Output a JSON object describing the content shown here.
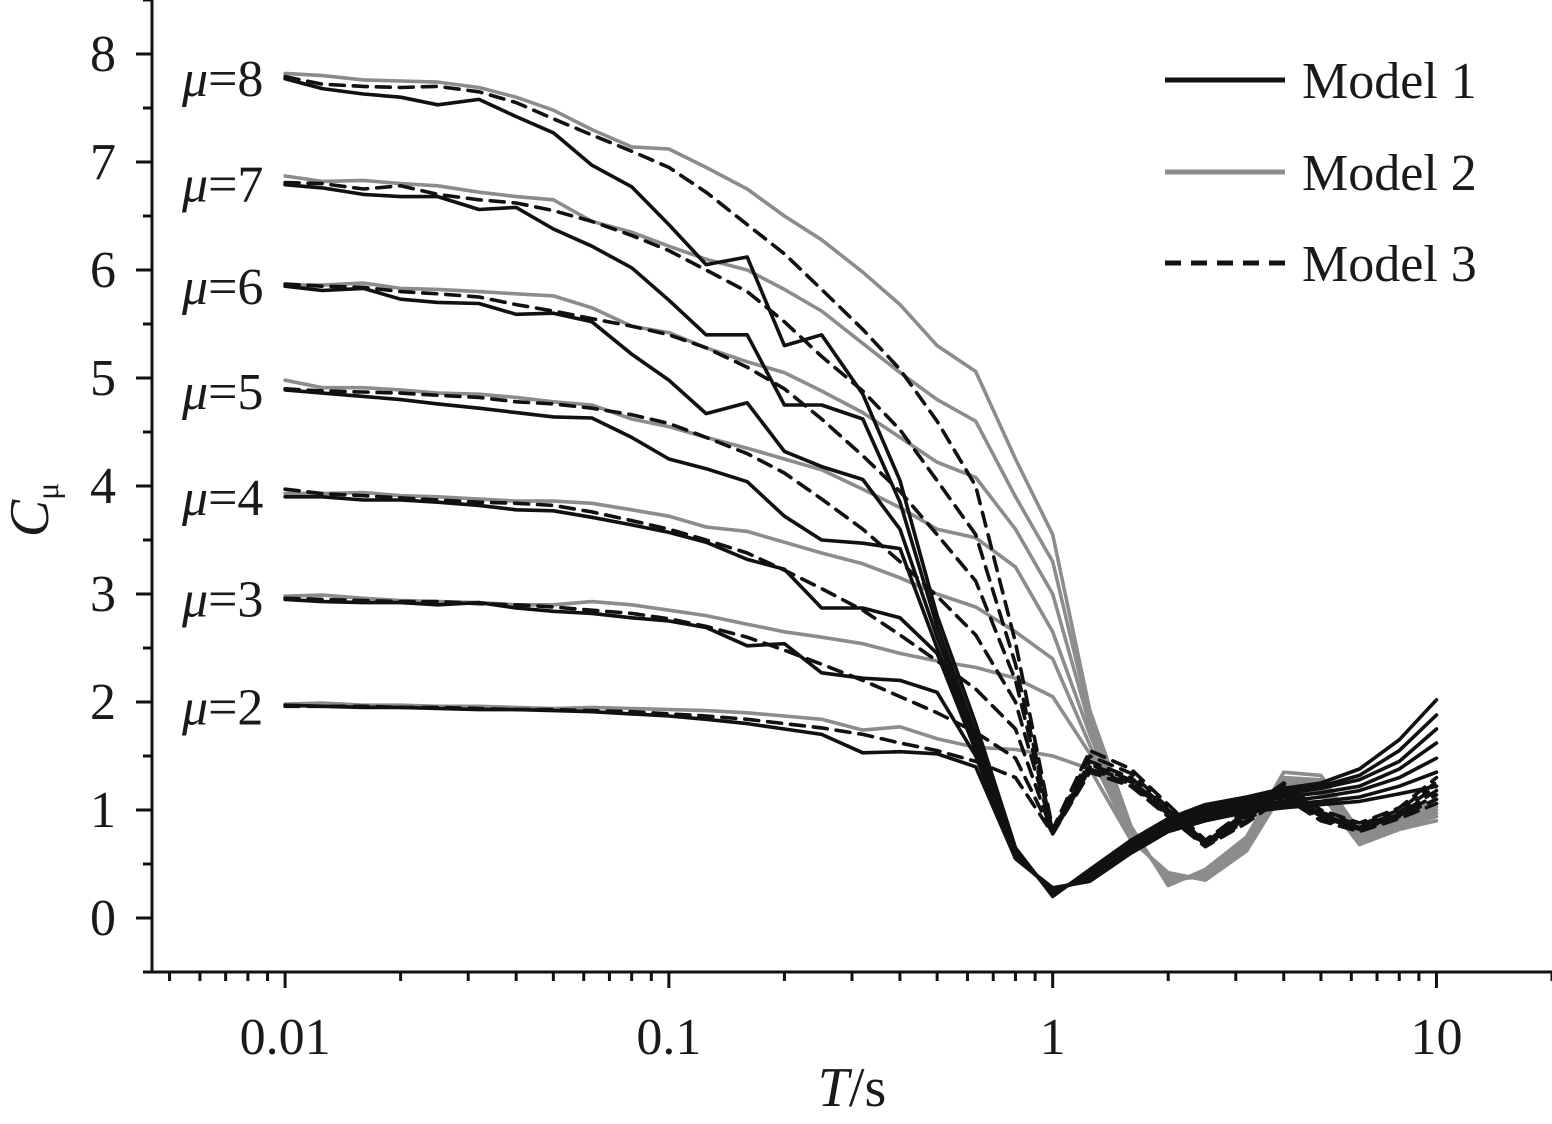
{
  "chart_data": {
    "type": "line",
    "xscale": "log",
    "xlim": [
      0.0045,
      20
    ],
    "ylim": [
      -0.5,
      8.5
    ],
    "xlabel": "T/s",
    "xlabel_italic": "T",
    "xlabel_unit": "/s",
    "ylabel": "Cμ",
    "ylabel_main": "C",
    "ylabel_sub": "μ",
    "x_ticks": [
      {
        "value": 0.01,
        "label": "0.01"
      },
      {
        "value": 0.1,
        "label": "0.1"
      },
      {
        "value": 1,
        "label": "1"
      },
      {
        "value": 10,
        "label": "10"
      }
    ],
    "y_ticks": [
      {
        "value": 0,
        "label": "0"
      },
      {
        "value": 1,
        "label": "1"
      },
      {
        "value": 2,
        "label": "2"
      },
      {
        "value": 3,
        "label": "3"
      },
      {
        "value": 4,
        "label": "4"
      },
      {
        "value": 5,
        "label": "5"
      },
      {
        "value": 6,
        "label": "6"
      },
      {
        "value": 7,
        "label": "7"
      },
      {
        "value": 8,
        "label": "8"
      }
    ],
    "legend": {
      "placement": "top-right",
      "entries": [
        {
          "label": "Model 1",
          "color": "#111111",
          "dash": "solid"
        },
        {
          "label": "Model 2",
          "color": "#8c8c8c",
          "dash": "solid"
        },
        {
          "label": "Model 3",
          "color": "#111111",
          "dash": "dashed"
        }
      ]
    },
    "curve_labels": [
      {
        "mu_symbol": "μ",
        "text": "=8",
        "y": 7.78
      },
      {
        "mu_symbol": "μ",
        "text": "=7",
        "y": 6.8
      },
      {
        "mu_symbol": "μ",
        "text": "=6",
        "y": 5.85
      },
      {
        "mu_symbol": "μ",
        "text": "=5",
        "y": 4.88
      },
      {
        "mu_symbol": "μ",
        "text": "=4",
        "y": 3.9
      },
      {
        "mu_symbol": "μ",
        "text": "=3",
        "y": 2.96
      },
      {
        "mu_symbol": "μ",
        "text": "=2",
        "y": 1.96
      }
    ],
    "x": [
      0.01,
      0.0125,
      0.016,
      0.02,
      0.025,
      0.032,
      0.04,
      0.05,
      0.063,
      0.08,
      0.1,
      0.125,
      0.16,
      0.2,
      0.25,
      0.32,
      0.4,
      0.5,
      0.63,
      0.8,
      1.0,
      1.25,
      1.6,
      2.0,
      2.5,
      3.2,
      4.0,
      5.0,
      6.3,
      8.0,
      10.0
    ],
    "series": [
      {
        "name": "Model 1",
        "mu": 8,
        "values": [
          7.77,
          7.68,
          7.63,
          7.6,
          7.53,
          7.58,
          7.42,
          7.27,
          6.97,
          6.77,
          6.42,
          6.05,
          6.12,
          5.3,
          5.4,
          4.85,
          4.05,
          2.8,
          1.8,
          0.65,
          0.2,
          0.45,
          0.72,
          0.92,
          1.05,
          1.12,
          1.2,
          1.25,
          1.38,
          1.65,
          2.02
        ]
      },
      {
        "name": "Model 1",
        "mu": 7,
        "values": [
          6.79,
          6.76,
          6.7,
          6.68,
          6.68,
          6.56,
          6.58,
          6.38,
          6.22,
          6.02,
          5.72,
          5.4,
          5.4,
          4.75,
          4.75,
          4.62,
          3.85,
          2.7,
          1.7,
          0.62,
          0.22,
          0.42,
          0.7,
          0.9,
          1.02,
          1.1,
          1.18,
          1.22,
          1.32,
          1.55,
          1.88
        ]
      },
      {
        "name": "Model 1",
        "mu": 6,
        "values": [
          5.85,
          5.81,
          5.83,
          5.73,
          5.7,
          5.69,
          5.59,
          5.6,
          5.52,
          5.22,
          4.98,
          4.67,
          4.77,
          4.32,
          4.18,
          4.06,
          3.6,
          2.6,
          1.65,
          0.6,
          0.24,
          0.4,
          0.68,
          0.88,
          1.0,
          1.08,
          1.15,
          1.2,
          1.28,
          1.45,
          1.75
        ]
      },
      {
        "name": "Model 1",
        "mu": 5,
        "values": [
          4.89,
          4.86,
          4.83,
          4.8,
          4.76,
          4.72,
          4.68,
          4.64,
          4.63,
          4.45,
          4.25,
          4.16,
          4.04,
          3.72,
          3.5,
          3.47,
          3.42,
          2.5,
          1.6,
          0.58,
          0.25,
          0.38,
          0.66,
          0.86,
          0.98,
          1.06,
          1.12,
          1.16,
          1.22,
          1.38,
          1.62
        ]
      },
      {
        "name": "Model 1",
        "mu": 4,
        "values": [
          3.9,
          3.9,
          3.87,
          3.87,
          3.85,
          3.82,
          3.78,
          3.77,
          3.71,
          3.64,
          3.57,
          3.48,
          3.32,
          3.23,
          2.87,
          2.87,
          2.78,
          2.45,
          1.55,
          0.56,
          0.26,
          0.36,
          0.64,
          0.84,
          0.95,
          1.03,
          1.08,
          1.12,
          1.18,
          1.3,
          1.48
        ]
      },
      {
        "name": "Model 1",
        "mu": 3,
        "values": [
          2.95,
          2.93,
          2.92,
          2.92,
          2.9,
          2.92,
          2.87,
          2.84,
          2.82,
          2.78,
          2.75,
          2.69,
          2.52,
          2.54,
          2.27,
          2.22,
          2.2,
          2.09,
          1.5,
          0.55,
          0.27,
          0.35,
          0.62,
          0.82,
          0.92,
          1.0,
          1.05,
          1.08,
          1.12,
          1.22,
          1.35
        ]
      },
      {
        "name": "Model 1",
        "mu": 2,
        "values": [
          1.97,
          1.96,
          1.95,
          1.95,
          1.94,
          1.93,
          1.93,
          1.92,
          1.91,
          1.89,
          1.87,
          1.84,
          1.8,
          1.75,
          1.7,
          1.53,
          1.54,
          1.52,
          1.4,
          0.55,
          0.28,
          0.34,
          0.6,
          0.8,
          0.9,
          0.98,
          1.02,
          1.05,
          1.08,
          1.15,
          1.22
        ]
      },
      {
        "name": "Model 2",
        "mu": 8,
        "values": [
          7.82,
          7.8,
          7.76,
          7.75,
          7.74,
          7.69,
          7.6,
          7.48,
          7.3,
          7.14,
          7.12,
          6.95,
          6.75,
          6.5,
          6.28,
          5.98,
          5.68,
          5.3,
          5.06,
          4.25,
          3.55,
          1.92,
          0.85,
          0.3,
          0.45,
          0.75,
          1.35,
          1.32,
          0.8,
          0.95,
          1.1
        ]
      },
      {
        "name": "Model 2",
        "mu": 7,
        "values": [
          6.87,
          6.82,
          6.83,
          6.8,
          6.78,
          6.72,
          6.68,
          6.65,
          6.45,
          6.35,
          6.22,
          6.1,
          6.0,
          5.82,
          5.62,
          5.32,
          5.05,
          4.8,
          4.6,
          3.9,
          3.3,
          1.85,
          0.82,
          0.32,
          0.42,
          0.72,
          1.3,
          1.28,
          0.78,
          0.92,
          1.06
        ]
      },
      {
        "name": "Model 2",
        "mu": 6,
        "values": [
          5.86,
          5.86,
          5.88,
          5.83,
          5.82,
          5.8,
          5.78,
          5.76,
          5.65,
          5.48,
          5.42,
          5.28,
          5.15,
          5.05,
          4.88,
          4.68,
          4.45,
          4.22,
          4.08,
          3.6,
          3.0,
          1.78,
          0.8,
          0.34,
          0.4,
          0.7,
          1.28,
          1.25,
          0.76,
          0.9,
          1.03
        ]
      },
      {
        "name": "Model 2",
        "mu": 5,
        "values": [
          4.98,
          4.91,
          4.91,
          4.89,
          4.86,
          4.85,
          4.82,
          4.78,
          4.75,
          4.62,
          4.55,
          4.45,
          4.35,
          4.25,
          4.15,
          3.97,
          3.8,
          3.6,
          3.52,
          3.25,
          2.65,
          1.7,
          0.78,
          0.36,
          0.38,
          0.68,
          1.25,
          1.22,
          0.74,
          0.88,
          1.0
        ]
      },
      {
        "name": "Model 2",
        "mu": 4,
        "values": [
          3.93,
          3.93,
          3.94,
          3.91,
          3.9,
          3.88,
          3.86,
          3.86,
          3.84,
          3.78,
          3.72,
          3.62,
          3.58,
          3.48,
          3.38,
          3.28,
          3.15,
          3.0,
          2.88,
          2.65,
          2.4,
          1.6,
          0.76,
          0.38,
          0.37,
          0.66,
          1.22,
          1.2,
          0.72,
          0.86,
          0.97
        ]
      },
      {
        "name": "Model 2",
        "mu": 3,
        "values": [
          2.98,
          2.99,
          2.96,
          2.94,
          2.93,
          2.92,
          2.9,
          2.9,
          2.93,
          2.9,
          2.85,
          2.8,
          2.72,
          2.65,
          2.6,
          2.54,
          2.45,
          2.38,
          2.32,
          2.22,
          2.05,
          1.52,
          0.74,
          0.4,
          0.36,
          0.64,
          1.2,
          1.18,
          0.7,
          0.84,
          0.94
        ]
      },
      {
        "name": "Model 2",
        "mu": 2,
        "values": [
          1.98,
          1.99,
          1.97,
          1.97,
          1.96,
          1.96,
          1.95,
          1.94,
          1.95,
          1.94,
          1.93,
          1.92,
          1.9,
          1.87,
          1.84,
          1.74,
          1.77,
          1.66,
          1.58,
          1.56,
          1.5,
          1.38,
          0.72,
          0.42,
          0.35,
          0.62,
          1.18,
          1.15,
          0.68,
          0.82,
          0.9
        ]
      },
      {
        "name": "Model 3",
        "mu": 8,
        "values": [
          7.79,
          7.72,
          7.7,
          7.69,
          7.7,
          7.65,
          7.55,
          7.4,
          7.25,
          7.1,
          6.95,
          6.72,
          6.42,
          6.15,
          5.82,
          5.45,
          5.08,
          4.6,
          4.0,
          2.55,
          0.82,
          1.55,
          1.38,
          1.05,
          0.72,
          1.0,
          1.25,
          1.0,
          0.88,
          1.02,
          1.3
        ]
      },
      {
        "name": "Model 3",
        "mu": 7,
        "values": [
          6.81,
          6.8,
          6.75,
          6.78,
          6.7,
          6.65,
          6.62,
          6.55,
          6.45,
          6.32,
          6.18,
          6.0,
          5.8,
          5.52,
          5.2,
          4.88,
          4.52,
          4.05,
          3.55,
          2.35,
          0.8,
          1.5,
          1.34,
          1.02,
          0.7,
          0.98,
          1.22,
          0.98,
          0.86,
          1.0,
          1.26
        ]
      },
      {
        "name": "Model 3",
        "mu": 6,
        "values": [
          5.87,
          5.85,
          5.84,
          5.8,
          5.78,
          5.75,
          5.68,
          5.62,
          5.55,
          5.48,
          5.4,
          5.28,
          5.1,
          4.9,
          4.62,
          4.28,
          3.95,
          3.55,
          3.12,
          2.2,
          0.8,
          1.45,
          1.3,
          1.0,
          0.7,
          0.96,
          1.2,
          0.96,
          0.84,
          0.98,
          1.22
        ]
      },
      {
        "name": "Model 3",
        "mu": 5,
        "values": [
          4.9,
          4.88,
          4.87,
          4.86,
          4.84,
          4.82,
          4.78,
          4.76,
          4.72,
          4.66,
          4.58,
          4.45,
          4.3,
          4.12,
          3.88,
          3.6,
          3.3,
          2.98,
          2.62,
          2.0,
          0.8,
          1.42,
          1.28,
          0.98,
          0.68,
          0.94,
          1.18,
          0.95,
          0.84,
          0.96,
          1.18
        ]
      },
      {
        "name": "Model 3",
        "mu": 4,
        "values": [
          3.97,
          3.93,
          3.91,
          3.89,
          3.87,
          3.85,
          3.84,
          3.82,
          3.76,
          3.68,
          3.6,
          3.5,
          3.38,
          3.22,
          3.05,
          2.85,
          2.62,
          2.38,
          2.12,
          1.75,
          0.78,
          1.4,
          1.26,
          0.96,
          0.68,
          0.92,
          1.16,
          0.94,
          0.82,
          0.95,
          1.14
        ]
      },
      {
        "name": "Model 3",
        "mu": 3,
        "values": [
          2.96,
          2.95,
          2.94,
          2.93,
          2.93,
          2.91,
          2.9,
          2.88,
          2.85,
          2.82,
          2.77,
          2.7,
          2.6,
          2.48,
          2.35,
          2.2,
          2.05,
          1.9,
          1.72,
          1.48,
          0.78,
          1.38,
          1.24,
          0.95,
          0.67,
          0.9,
          1.14,
          0.92,
          0.82,
          0.94,
          1.1
        ]
      },
      {
        "name": "Model 3",
        "mu": 2,
        "values": [
          1.96,
          1.96,
          1.96,
          1.95,
          1.95,
          1.94,
          1.93,
          1.93,
          1.92,
          1.91,
          1.89,
          1.87,
          1.84,
          1.8,
          1.76,
          1.7,
          1.62,
          1.55,
          1.45,
          1.3,
          0.78,
          1.35,
          1.22,
          0.94,
          0.66,
          0.88,
          1.12,
          0.9,
          0.8,
          0.92,
          1.06
        ]
      }
    ]
  }
}
